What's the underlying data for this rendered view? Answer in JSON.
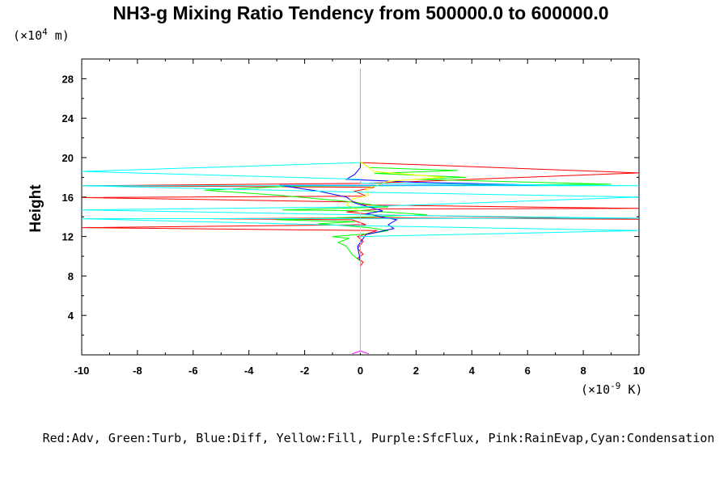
{
  "chart_data": {
    "type": "line",
    "title": "NH3-g Mixing Ratio Tendency from 500000.0 to 600000.0",
    "ylabel": "Height",
    "y_unit_prefix": "(×10",
    "y_unit_exp": "4",
    "y_unit_suffix": " m)",
    "x_unit_prefix": "(×10",
    "x_unit_exp": "-9",
    "x_unit_suffix": " K)",
    "xlim": [
      -10,
      10
    ],
    "ylim": [
      0,
      30
    ],
    "x_ticks": [
      -10,
      -8,
      -6,
      -4,
      -2,
      0,
      2,
      4,
      6,
      8,
      10
    ],
    "x_tick_labels": [
      "-10",
      "-8",
      "-6",
      "-4",
      "-2",
      "0",
      "2",
      "4",
      "6",
      "8",
      "10"
    ],
    "y_ticks": [
      4,
      8,
      12,
      16,
      20,
      24,
      28
    ],
    "y_tick_labels": [
      "4",
      "8",
      "12",
      "16",
      "20",
      "24",
      "28"
    ],
    "grid": false,
    "legend_text": "Red:Adv, Green:Turb, Blue:Diff, Yellow:Fill, Purple:SfcFlux, Pink:RainEvap,Cyan:Condensation",
    "series": [
      {
        "name": "Adv",
        "color": "#ff0000",
        "points": [
          [
            0,
            0.2
          ],
          [
            0,
            9.0
          ],
          [
            0.1,
            9.4
          ],
          [
            -0.1,
            9.8
          ],
          [
            0.1,
            10.2
          ],
          [
            -0.1,
            10.8
          ],
          [
            0.1,
            11.5
          ],
          [
            -0.1,
            12.0
          ],
          [
            0.6,
            12.6
          ],
          [
            -10,
            12.9
          ],
          [
            0.2,
            13.2
          ],
          [
            -0.3,
            13.7
          ],
          [
            -5.3,
            13.8
          ],
          [
            0.5,
            13.9
          ],
          [
            10,
            13.75
          ],
          [
            0.5,
            14.2
          ],
          [
            -0.5,
            14.5
          ],
          [
            0.8,
            14.8
          ],
          [
            10,
            14.85
          ],
          [
            0.2,
            15.2
          ],
          [
            -0.2,
            15.5
          ],
          [
            -10,
            15.95
          ],
          [
            0.2,
            16.1
          ],
          [
            -0.2,
            16.6
          ],
          [
            0.5,
            17.0
          ],
          [
            -10,
            17.15
          ],
          [
            0.3,
            17.4
          ],
          [
            10,
            18.45
          ],
          [
            0,
            19.5
          ],
          [
            0,
            29.0
          ]
        ]
      },
      {
        "name": "Turb",
        "color": "#00ff00",
        "points": [
          [
            0,
            0.2
          ],
          [
            0,
            9.5
          ],
          [
            -0.3,
            10.2
          ],
          [
            -0.5,
            11.0
          ],
          [
            -0.8,
            11.4
          ],
          [
            -0.4,
            11.8
          ],
          [
            -1.0,
            12.0
          ],
          [
            0.4,
            12.3
          ],
          [
            1.0,
            12.6
          ],
          [
            0.3,
            12.9
          ],
          [
            -1.5,
            13.3
          ],
          [
            -0.2,
            13.5
          ],
          [
            -3.0,
            13.7
          ],
          [
            2.4,
            14.2
          ],
          [
            0.3,
            14.6
          ],
          [
            -2.8,
            14.7
          ],
          [
            1.0,
            15.0
          ],
          [
            -0.6,
            15.6
          ],
          [
            -3.0,
            16.2
          ],
          [
            -5.6,
            16.7
          ],
          [
            -2.5,
            17.1
          ],
          [
            9.0,
            17.3
          ],
          [
            2.0,
            17.8
          ],
          [
            3.8,
            18.0
          ],
          [
            0.5,
            18.4
          ],
          [
            3.5,
            18.7
          ],
          [
            0.3,
            19.0
          ],
          [
            0,
            19.6
          ],
          [
            0,
            29.0
          ]
        ]
      },
      {
        "name": "Diff",
        "color": "#0000ff",
        "points": [
          [
            0,
            0.2
          ],
          [
            0,
            9.5
          ],
          [
            -0.1,
            11.0
          ],
          [
            0.2,
            12.2
          ],
          [
            1.2,
            12.8
          ],
          [
            1.0,
            13.2
          ],
          [
            1.3,
            13.7
          ],
          [
            0.2,
            14.3
          ],
          [
            0.8,
            14.6
          ],
          [
            -0.2,
            15.4
          ],
          [
            -0.5,
            16.0
          ],
          [
            -1.5,
            16.6
          ],
          [
            -2.9,
            17.2
          ],
          [
            6.8,
            17.2
          ],
          [
            2.0,
            17.5
          ],
          [
            -0.5,
            17.8
          ],
          [
            -0.2,
            18.3
          ],
          [
            0,
            19.0
          ],
          [
            0,
            29.0
          ]
        ]
      },
      {
        "name": "Fill",
        "color": "#ffff00",
        "points": [
          [
            0,
            0.2
          ],
          [
            0,
            14.6
          ],
          [
            -0.5,
            15.2
          ],
          [
            -0.3,
            15.8
          ],
          [
            0.3,
            16.2
          ],
          [
            0.2,
            16.8
          ],
          [
            1.0,
            17.6
          ],
          [
            3.0,
            18.0
          ],
          [
            0.5,
            18.6
          ],
          [
            0.2,
            19.2
          ],
          [
            0,
            19.6
          ],
          [
            0,
            29.0
          ]
        ]
      },
      {
        "name": "SfcFlux",
        "color": "#ff00ff",
        "points": [
          [
            -0.3,
            0.1
          ],
          [
            0,
            0.4
          ],
          [
            0.3,
            0.1
          ]
        ]
      },
      {
        "name": "Condensation",
        "color": "#00ffff",
        "points": [
          [
            0,
            0.2
          ],
          [
            0,
            12.0
          ],
          [
            10,
            12.6
          ],
          [
            0,
            13.1
          ],
          [
            -10,
            13.8
          ],
          [
            10,
            13.85
          ],
          [
            0,
            14.2
          ],
          [
            -10,
            14.7
          ],
          [
            0,
            15.0
          ],
          [
            10,
            16.0
          ],
          [
            0,
            16.5
          ],
          [
            -10,
            17.15
          ],
          [
            10,
            17.15
          ],
          [
            0,
            17.4
          ],
          [
            0,
            17.8
          ],
          [
            -10,
            18.6
          ],
          [
            0,
            19.5
          ],
          [
            0,
            29.0
          ]
        ]
      }
    ]
  }
}
